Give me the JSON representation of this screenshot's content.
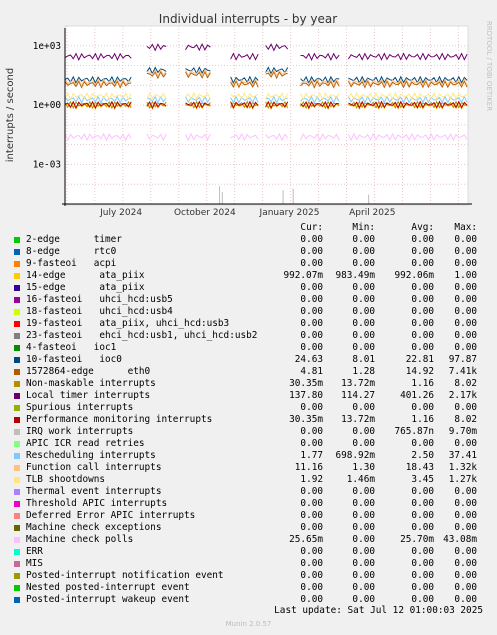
{
  "chart_data": {
    "type": "line",
    "title": "Individual interrupts - by year",
    "ylabel": "interrupts / second",
    "y_scale": "log",
    "ylim": [
      1e-05,
      10000
    ],
    "y_ticks": [
      "1e+03",
      "1e+00",
      "1e-03"
    ],
    "x_ticks": [
      "July 2024",
      "October 2024",
      "January 2025",
      "April 2025"
    ],
    "watermark": "RRDTOOL / TOBI OETIKER",
    "grid": true,
    "columns": [
      "Cur:",
      "Min:",
      "Avg:",
      "Max:"
    ],
    "series": [
      {
        "name": "2-edge      timer",
        "color": "#00cc00",
        "cur": "0.00",
        "min": "0.00",
        "avg": "0.00",
        "max": "0.00"
      },
      {
        "name": "8-edge      rtc0",
        "color": "#0066b3",
        "cur": "0.00",
        "min": "0.00",
        "avg": "0.00",
        "max": "0.00"
      },
      {
        "name": "9-fasteoi   acpi",
        "color": "#ff8000",
        "cur": "0.00",
        "min": "0.00",
        "avg": "0.00",
        "max": "0.00"
      },
      {
        "name": "14-edge      ata_piix",
        "color": "#ffcc00",
        "cur": "992.07m",
        "min": "983.49m",
        "avg": "992.06m",
        "max": "1.00"
      },
      {
        "name": "15-edge      ata_piix",
        "color": "#330099",
        "cur": "0.00",
        "min": "0.00",
        "avg": "0.00",
        "max": "0.00"
      },
      {
        "name": "16-fasteoi   uhci_hcd:usb5",
        "color": "#990099",
        "cur": "0.00",
        "min": "0.00",
        "avg": "0.00",
        "max": "0.00"
      },
      {
        "name": "18-fasteoi   uhci_hcd:usb4",
        "color": "#ccff00",
        "cur": "0.00",
        "min": "0.00",
        "avg": "0.00",
        "max": "0.00"
      },
      {
        "name": "19-fasteoi   ata_piix, uhci_hcd:usb3",
        "color": "#ff0000",
        "cur": "0.00",
        "min": "0.00",
        "avg": "0.00",
        "max": "0.00"
      },
      {
        "name": "23-fasteoi   ehci_hcd:usb1, uhci_hcd:usb2",
        "color": "#808080",
        "cur": "0.00",
        "min": "0.00",
        "avg": "0.00",
        "max": "0.00"
      },
      {
        "name": "4-fasteoi   ioc1",
        "color": "#008f00",
        "cur": "0.00",
        "min": "0.00",
        "avg": "0.00",
        "max": "0.00"
      },
      {
        "name": "10-fasteoi   ioc0",
        "color": "#00487d",
        "cur": "24.63",
        "min": "8.01",
        "avg": "22.81",
        "max": "97.87"
      },
      {
        "name": "1572864-edge      eth0",
        "color": "#b35a00",
        "cur": "4.81",
        "min": "1.28",
        "avg": "14.92",
        "max": "7.41k"
      },
      {
        "name": "Non-maskable interrupts",
        "color": "#b38f00",
        "cur": "30.35m",
        "min": "13.72m",
        "avg": "1.16",
        "max": "8.02"
      },
      {
        "name": "Local timer interrupts",
        "color": "#6b006b",
        "cur": "137.80",
        "min": "114.27",
        "avg": "401.26",
        "max": "2.17k"
      },
      {
        "name": "Spurious interrupts",
        "color": "#8fb300",
        "cur": "0.00",
        "min": "0.00",
        "avg": "0.00",
        "max": "0.00"
      },
      {
        "name": "Performance monitoring interrupts",
        "color": "#b30000",
        "cur": "30.35m",
        "min": "13.72m",
        "avg": "1.16",
        "max": "8.02"
      },
      {
        "name": "IRQ work interrupts",
        "color": "#bebebe",
        "cur": "0.00",
        "min": "0.00",
        "avg": "765.87n",
        "max": "9.70m"
      },
      {
        "name": "APIC ICR read retries",
        "color": "#80ff80",
        "cur": "0.00",
        "min": "0.00",
        "avg": "0.00",
        "max": "0.00"
      },
      {
        "name": "Rescheduling interrupts",
        "color": "#80c9ff",
        "cur": "1.77",
        "min": "698.92m",
        "avg": "2.50",
        "max": "37.41"
      },
      {
        "name": "Function call interrupts",
        "color": "#ffc080",
        "cur": "11.16",
        "min": "1.30",
        "avg": "18.43",
        "max": "1.32k"
      },
      {
        "name": "TLB shootdowns",
        "color": "#ffe680",
        "cur": "1.92",
        "min": "1.46m",
        "avg": "3.45",
        "max": "1.27k"
      },
      {
        "name": "Thermal event interrupts",
        "color": "#aa80ff",
        "cur": "0.00",
        "min": "0.00",
        "avg": "0.00",
        "max": "0.00"
      },
      {
        "name": "Threshold APIC interrupts",
        "color": "#ee00cc",
        "cur": "0.00",
        "min": "0.00",
        "avg": "0.00",
        "max": "0.00"
      },
      {
        "name": "Deferred Error APIC interrupts",
        "color": "#ff8080",
        "cur": "0.00",
        "min": "0.00",
        "avg": "0.00",
        "max": "0.00"
      },
      {
        "name": "Machine check exceptions",
        "color": "#666600",
        "cur": "0.00",
        "min": "0.00",
        "avg": "0.00",
        "max": "0.00"
      },
      {
        "name": "Machine check polls",
        "color": "#ffbfff",
        "cur": "25.65m",
        "min": "0.00",
        "avg": "25.70m",
        "max": "43.08m"
      },
      {
        "name": "ERR",
        "color": "#00ffcc",
        "cur": "0.00",
        "min": "0.00",
        "avg": "0.00",
        "max": "0.00"
      },
      {
        "name": "MIS",
        "color": "#cc6699",
        "cur": "0.00",
        "min": "0.00",
        "avg": "0.00",
        "max": "0.00"
      },
      {
        "name": "Posted-interrupt notification event",
        "color": "#999900",
        "cur": "0.00",
        "min": "0.00",
        "avg": "0.00",
        "max": "0.00"
      },
      {
        "name": "Nested posted-interrupt event",
        "color": "#00cc00",
        "cur": "0.00",
        "min": "0.00",
        "avg": "0.00",
        "max": "0.00"
      },
      {
        "name": "Posted-interrupt wakeup event",
        "color": "#0066b3",
        "cur": "0.00",
        "min": "0.00",
        "avg": "0.00",
        "max": "0.00"
      }
    ],
    "last_update": "Last update: Sat Jul 12 01:00:03 2025",
    "version": "Munin 2.0.57"
  }
}
